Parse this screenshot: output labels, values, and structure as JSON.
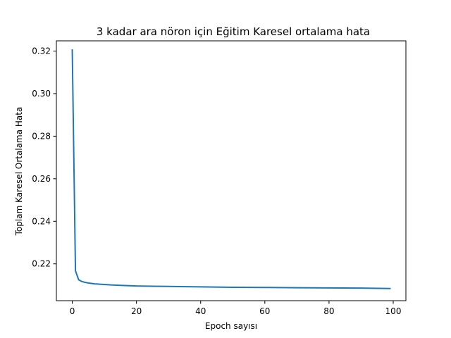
{
  "chart_data": {
    "type": "line",
    "title": "3 kadar ara nöron için  Eğitim Karesel ortalama hata",
    "xlabel": "Epoch sayısı",
    "ylabel": "Toplam Karesel Ortalama Hata",
    "xlim": [
      -4.95,
      103.95
    ],
    "ylim": [
      0.2027,
      0.3248
    ],
    "xticks": [
      0,
      20,
      40,
      60,
      80,
      100
    ],
    "xtick_labels": [
      "0",
      "20",
      "40",
      "60",
      "80",
      "100"
    ],
    "yticks": [
      0.22,
      0.24,
      0.26,
      0.28,
      0.3,
      0.32
    ],
    "ytick_labels": [
      "0.22",
      "0.24",
      "0.26",
      "0.28",
      "0.30",
      "0.32"
    ],
    "grid": false,
    "series": [
      {
        "color": "#1f77b4",
        "x": [
          0,
          1,
          2,
          3,
          4,
          5,
          6,
          7,
          8,
          9,
          10,
          12,
          15,
          20,
          25,
          30,
          40,
          50,
          60,
          70,
          80,
          90,
          99
        ],
        "y": [
          0.3205,
          0.2167,
          0.2125,
          0.2117,
          0.2113,
          0.211,
          0.2108,
          0.2106,
          0.2105,
          0.2104,
          0.2103,
          0.2101,
          0.2099,
          0.2096,
          0.2095,
          0.2094,
          0.2092,
          0.209,
          0.2089,
          0.2088,
          0.2087,
          0.2086,
          0.2084
        ]
      }
    ]
  }
}
